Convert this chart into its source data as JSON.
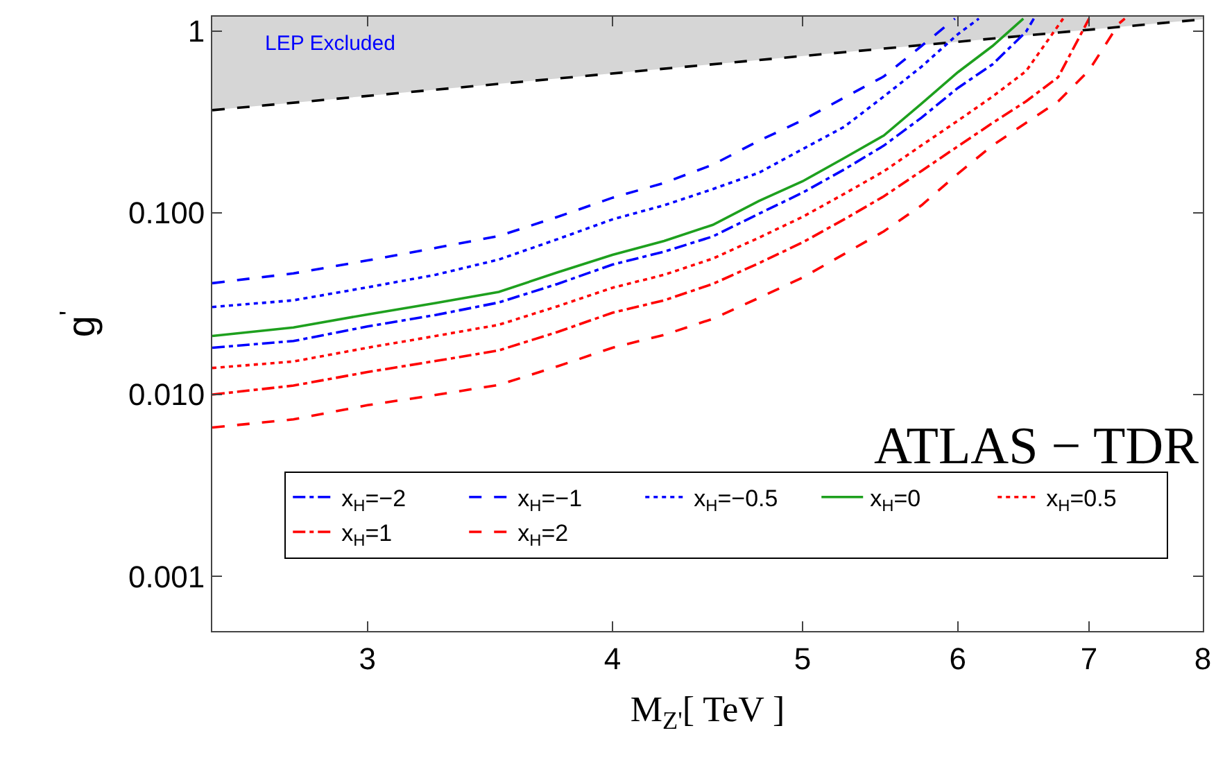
{
  "chart_data": {
    "type": "line",
    "xlabel": "M$_{Z'}$[ TeV ]",
    "ylabel": "g$^{'}$",
    "log": "xy",
    "legend": "bottom left",
    "marker": "none",
    "xlim": [
      2.5,
      8
    ],
    "xticks": [
      3,
      4,
      5,
      6,
      7,
      8
    ],
    "ylim": [
      0.0005,
      1.2
    ],
    "yticks": [
      {
        "value": 1,
        "label": "1"
      },
      {
        "value": 0.1,
        "label": "0.100"
      },
      {
        "value": 0.01,
        "label": "0.010"
      },
      {
        "value": 0.001,
        "label": "0.001"
      }
    ],
    "annotations": [
      "LEP Excluded",
      "ATLAS − TDR"
    ],
    "series": [
      {
        "color": "#000000",
        "line_style": "dashed",
        "x": [
          2.5,
          8
        ],
        "values": [
          0.367,
          1.16
        ],
        "lower": [
          0.367,
          1.16
        ],
        "upper": [
          1.2,
          1.2
        ]
      },
      {
        "name": "x$_{H}$=−2",
        "color": "#0000ff",
        "line_style": "dashdot",
        "x": [
          2.5,
          2.75,
          3,
          3.25,
          3.5,
          3.75,
          4,
          4.25,
          4.5,
          4.75,
          5,
          5.25,
          5.5,
          5.75,
          6,
          6.25,
          6.5,
          6.56
        ],
        "values": [
          0.0181,
          0.0197,
          0.0237,
          0.0274,
          0.0321,
          0.0406,
          0.0519,
          0.0611,
          0.0741,
          0.0988,
          0.129,
          0.173,
          0.234,
          0.334,
          0.486,
          0.656,
          0.99,
          1.17
        ]
      },
      {
        "name": "x$_{H}$=−1",
        "color": "#0000ff",
        "line_style": "dashed",
        "x": [
          2.5,
          2.75,
          3,
          3.25,
          3.5,
          3.75,
          4,
          4.25,
          4.5,
          4.75,
          5,
          5.25,
          5.5,
          5.75,
          5.98
        ],
        "values": [
          0.041,
          0.0464,
          0.0547,
          0.0641,
          0.0745,
          0.0949,
          0.121,
          0.146,
          0.184,
          0.249,
          0.323,
          0.43,
          0.562,
          0.828,
          1.17
        ]
      },
      {
        "name": "x$_{H}$=−0.5",
        "color": "#0000ff",
        "line_style": "dotted",
        "x": [
          2.5,
          2.75,
          3,
          3.25,
          3.5,
          3.75,
          4,
          4.25,
          4.5,
          4.75,
          5,
          5.25,
          5.5,
          5.75,
          6,
          6.15
        ],
        "values": [
          0.0303,
          0.033,
          0.0389,
          0.0456,
          0.0553,
          0.0716,
          0.092,
          0.11,
          0.135,
          0.166,
          0.224,
          0.297,
          0.436,
          0.637,
          0.96,
          1.17
        ]
      },
      {
        "name": "x$_{H}$=0",
        "color": "#1ea01e",
        "line_style": "solid",
        "x": [
          2.5,
          2.75,
          3,
          3.25,
          3.5,
          3.75,
          4,
          4.25,
          4.5,
          4.75,
          5,
          5.25,
          5.5,
          5.75,
          6,
          6.25,
          6.48
        ],
        "values": [
          0.021,
          0.0234,
          0.0276,
          0.0319,
          0.0367,
          0.047,
          0.0587,
          0.07,
          0.0858,
          0.116,
          0.149,
          0.2,
          0.266,
          0.399,
          0.593,
          0.828,
          1.17
        ]
      },
      {
        "name": "x$_{H}$=0.5",
        "color": "#ff0000",
        "line_style": "dotted",
        "x": [
          2.5,
          2.75,
          3,
          3.25,
          3.5,
          3.75,
          4,
          4.25,
          4.5,
          4.75,
          5,
          5.25,
          5.5,
          5.75,
          6,
          6.25,
          6.5,
          6.79
        ],
        "values": [
          0.014,
          0.0152,
          0.0181,
          0.021,
          0.0242,
          0.0306,
          0.0387,
          0.0456,
          0.056,
          0.0729,
          0.0949,
          0.127,
          0.169,
          0.235,
          0.321,
          0.436,
          0.601,
          1.17
        ]
      },
      {
        "name": "x$_{H}$=1",
        "color": "#ff0000",
        "line_style": "dashdot",
        "x": [
          2.5,
          2.75,
          3,
          3.25,
          3.5,
          3.75,
          4,
          4.25,
          4.5,
          4.75,
          5,
          5.25,
          5.5,
          5.75,
          6,
          6.25,
          6.5,
          6.75,
          7.0
        ],
        "values": [
          0.01,
          0.0112,
          0.0133,
          0.0153,
          0.0175,
          0.0221,
          0.0282,
          0.033,
          0.0406,
          0.0528,
          0.0687,
          0.092,
          0.123,
          0.17,
          0.232,
          0.312,
          0.41,
          0.557,
          1.17
        ]
      },
      {
        "name": "x$_{H}$=2",
        "color": "#ff0000",
        "line_style": "dashed",
        "x": [
          2.5,
          2.75,
          3,
          3.25,
          3.5,
          3.75,
          4,
          4.25,
          4.5,
          4.75,
          5,
          5.25,
          5.5,
          5.75,
          6,
          6.25,
          6.5,
          6.75,
          7,
          7.25,
          7.3
        ],
        "values": [
          0.00659,
          0.0073,
          0.00874,
          0.00995,
          0.0113,
          0.0143,
          0.0181,
          0.0213,
          0.0261,
          0.034,
          0.044,
          0.0593,
          0.079,
          0.11,
          0.164,
          0.235,
          0.312,
          0.41,
          0.608,
          1.1,
          1.17
        ]
      }
    ]
  }
}
